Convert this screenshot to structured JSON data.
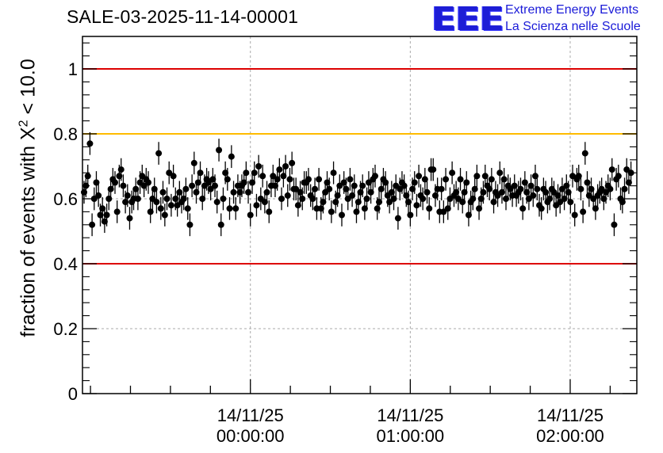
{
  "title": "SALE-03-2025-11-14-00001",
  "logo": {
    "mark": "EEE",
    "line1": "Extreme Energy Events",
    "line2": "La Scienza nelle Scuole"
  },
  "chart_data": {
    "type": "scatter",
    "title": "SALE-03-2025-11-14-00001",
    "ylabel_prefix": "fraction of events with ",
    "ylabel_chi": "X",
    "ylabel_exp": "2",
    "ylabel_suffix": " < 10.0",
    "ylim": [
      0,
      1.1
    ],
    "yticks": [
      {
        "value": 0,
        "label": "0"
      },
      {
        "value": 0.2,
        "label": "0.2"
      },
      {
        "value": 0.4,
        "label": "0.4"
      },
      {
        "value": 0.6,
        "label": "0.6"
      },
      {
        "value": 0.8,
        "label": "0.8"
      },
      {
        "value": 1,
        "label": "1"
      }
    ],
    "xlim_min": [
      -63,
      145
    ],
    "xticks": [
      {
        "value": 0,
        "date": "14/11/25",
        "time": "00:00:00"
      },
      {
        "value": 60,
        "date": "14/11/25",
        "time": "01:00:00"
      },
      {
        "value": 120,
        "date": "14/11/25",
        "time": "02:00:00"
      }
    ],
    "x_minor_step_min": 15,
    "reference_lines": [
      {
        "value": 1.0,
        "color": "#dd0000"
      },
      {
        "value": 0.8,
        "color": "#ffbb00"
      },
      {
        "value": 0.4,
        "color": "#dd0000"
      }
    ],
    "series": [
      {
        "name": "fraction",
        "error": 0.035,
        "points": [
          [
            -62.4,
            0.62
          ],
          [
            -61.7,
            0.64
          ],
          [
            -61.0,
            0.67
          ],
          [
            -60.2,
            0.77
          ],
          [
            -59.4,
            0.52
          ],
          [
            -58.6,
            0.6
          ],
          [
            -57.8,
            0.65
          ],
          [
            -57.0,
            0.61
          ],
          [
            -56.3,
            0.55
          ],
          [
            -55.5,
            0.57
          ],
          [
            -54.7,
            0.53
          ],
          [
            -53.9,
            0.55
          ],
          [
            -53.1,
            0.6
          ],
          [
            -52.4,
            0.63
          ],
          [
            -51.6,
            0.66
          ],
          [
            -50.8,
            0.65
          ],
          [
            -50.0,
            0.56
          ],
          [
            -49.2,
            0.67
          ],
          [
            -48.5,
            0.69
          ],
          [
            -47.7,
            0.64
          ],
          [
            -46.9,
            0.59
          ],
          [
            -46.1,
            0.61
          ],
          [
            -45.3,
            0.54
          ],
          [
            -44.5,
            0.59
          ],
          [
            -43.8,
            0.6
          ],
          [
            -43.0,
            0.63
          ],
          [
            -42.2,
            0.6
          ],
          [
            -41.4,
            0.65
          ],
          [
            -40.6,
            0.67
          ],
          [
            -39.9,
            0.64
          ],
          [
            -39.1,
            0.66
          ],
          [
            -38.3,
            0.65
          ],
          [
            -37.5,
            0.56
          ],
          [
            -36.7,
            0.6
          ],
          [
            -36.0,
            0.63
          ],
          [
            -35.2,
            0.59
          ],
          [
            -34.4,
            0.74
          ],
          [
            -33.6,
            0.57
          ],
          [
            -32.8,
            0.62
          ],
          [
            -32.1,
            0.55
          ],
          [
            -31.3,
            0.6
          ],
          [
            -30.5,
            0.68
          ],
          [
            -29.7,
            0.58
          ],
          [
            -28.9,
            0.67
          ],
          [
            -28.1,
            0.6
          ],
          [
            -27.4,
            0.58
          ],
          [
            -26.6,
            0.62
          ],
          [
            -25.8,
            0.59
          ],
          [
            -25.0,
            0.6
          ],
          [
            -24.2,
            0.63
          ],
          [
            -23.5,
            0.57
          ],
          [
            -22.7,
            0.52
          ],
          [
            -21.9,
            0.64
          ],
          [
            -21.1,
            0.71
          ],
          [
            -20.3,
            0.62
          ],
          [
            -19.6,
            0.65
          ],
          [
            -18.8,
            0.68
          ],
          [
            -18.0,
            0.6
          ],
          [
            -17.2,
            0.64
          ],
          [
            -16.4,
            0.66
          ],
          [
            -15.7,
            0.65
          ],
          [
            -14.9,
            0.63
          ],
          [
            -14.1,
            0.66
          ],
          [
            -13.3,
            0.64
          ],
          [
            -12.5,
            0.59
          ],
          [
            -11.8,
            0.75
          ],
          [
            -11.0,
            0.52
          ],
          [
            -10.2,
            0.6
          ],
          [
            -9.4,
            0.68
          ],
          [
            -8.6,
            0.66
          ],
          [
            -7.8,
            0.57
          ],
          [
            -7.1,
            0.73
          ],
          [
            -6.3,
            0.62
          ],
          [
            -5.5,
            0.57
          ],
          [
            -4.7,
            0.64
          ],
          [
            -3.9,
            0.62
          ],
          [
            -3.2,
            0.64
          ],
          [
            -2.4,
            0.65
          ],
          [
            -1.6,
            0.68
          ],
          [
            -0.8,
            0.62
          ],
          [
            0.0,
            0.55
          ],
          [
            0.7,
            0.65
          ],
          [
            1.5,
            0.68
          ],
          [
            2.3,
            0.58
          ],
          [
            3.1,
            0.7
          ],
          [
            3.9,
            0.6
          ],
          [
            4.6,
            0.67
          ],
          [
            5.4,
            0.59
          ],
          [
            6.2,
            0.62
          ],
          [
            7.0,
            0.56
          ],
          [
            7.8,
            0.64
          ],
          [
            8.5,
            0.67
          ],
          [
            9.3,
            0.64
          ],
          [
            10.1,
            0.66
          ],
          [
            10.9,
            0.69
          ],
          [
            11.7,
            0.6
          ],
          [
            12.4,
            0.67
          ],
          [
            13.2,
            0.7
          ],
          [
            14.0,
            0.61
          ],
          [
            14.8,
            0.66
          ],
          [
            15.6,
            0.71
          ],
          [
            16.3,
            0.63
          ],
          [
            17.1,
            0.63
          ],
          [
            17.9,
            0.58
          ],
          [
            18.7,
            0.62
          ],
          [
            19.5,
            0.6
          ],
          [
            20.2,
            0.65
          ],
          [
            21.0,
            0.65
          ],
          [
            21.8,
            0.66
          ],
          [
            22.6,
            0.61
          ],
          [
            23.4,
            0.6
          ],
          [
            24.2,
            0.63
          ],
          [
            24.9,
            0.57
          ],
          [
            25.7,
            0.66
          ],
          [
            26.5,
            0.57
          ],
          [
            27.3,
            0.59
          ],
          [
            28.1,
            0.62
          ],
          [
            28.8,
            0.65
          ],
          [
            29.6,
            0.63
          ],
          [
            30.4,
            0.56
          ],
          [
            31.2,
            0.68
          ],
          [
            32.0,
            0.59
          ],
          [
            32.7,
            0.61
          ],
          [
            33.5,
            0.64
          ],
          [
            34.3,
            0.55
          ],
          [
            35.1,
            0.65
          ],
          [
            35.9,
            0.63
          ],
          [
            36.6,
            0.6
          ],
          [
            37.4,
            0.66
          ],
          [
            38.2,
            0.61
          ],
          [
            39.0,
            0.64
          ],
          [
            39.8,
            0.56
          ],
          [
            40.5,
            0.59
          ],
          [
            41.3,
            0.62
          ],
          [
            42.1,
            0.64
          ],
          [
            42.9,
            0.57
          ],
          [
            43.7,
            0.6
          ],
          [
            44.4,
            0.65
          ],
          [
            45.2,
            0.62
          ],
          [
            46.0,
            0.66
          ],
          [
            46.8,
            0.67
          ],
          [
            47.6,
            0.57
          ],
          [
            48.3,
            0.59
          ],
          [
            49.1,
            0.63
          ],
          [
            49.9,
            0.66
          ],
          [
            50.7,
            0.65
          ],
          [
            51.5,
            0.61
          ],
          [
            52.2,
            0.59
          ],
          [
            53.0,
            0.62
          ],
          [
            53.8,
            0.6
          ],
          [
            54.6,
            0.64
          ],
          [
            55.4,
            0.54
          ],
          [
            56.1,
            0.63
          ],
          [
            56.9,
            0.65
          ],
          [
            57.7,
            0.64
          ],
          [
            58.5,
            0.61
          ],
          [
            59.3,
            0.59
          ],
          [
            60.0,
            0.55
          ],
          [
            60.8,
            0.63
          ],
          [
            61.6,
            0.65
          ],
          [
            62.4,
            0.58
          ],
          [
            63.2,
            0.67
          ],
          [
            63.9,
            0.61
          ],
          [
            64.7,
            0.6
          ],
          [
            65.5,
            0.66
          ],
          [
            66.3,
            0.62
          ],
          [
            67.1,
            0.57
          ],
          [
            67.8,
            0.69
          ],
          [
            68.6,
            0.69
          ],
          [
            69.4,
            0.61
          ],
          [
            70.2,
            0.63
          ],
          [
            71.0,
            0.56
          ],
          [
            71.7,
            0.63
          ],
          [
            72.5,
            0.56
          ],
          [
            73.3,
            0.66
          ],
          [
            74.1,
            0.57
          ],
          [
            74.9,
            0.6
          ],
          [
            75.7,
            0.68
          ],
          [
            76.4,
            0.61
          ],
          [
            77.2,
            0.62
          ],
          [
            78.0,
            0.6
          ],
          [
            78.8,
            0.66
          ],
          [
            79.6,
            0.59
          ],
          [
            80.3,
            0.62
          ],
          [
            81.1,
            0.65
          ],
          [
            81.9,
            0.55
          ],
          [
            82.7,
            0.59
          ],
          [
            83.5,
            0.6
          ],
          [
            84.2,
            0.63
          ],
          [
            85.0,
            0.67
          ],
          [
            85.8,
            0.57
          ],
          [
            86.6,
            0.6
          ],
          [
            87.4,
            0.62
          ],
          [
            88.1,
            0.67
          ],
          [
            88.9,
            0.64
          ],
          [
            89.7,
            0.63
          ],
          [
            90.5,
            0.66
          ],
          [
            91.3,
            0.59
          ],
          [
            92.0,
            0.62
          ],
          [
            92.8,
            0.61
          ],
          [
            93.6,
            0.68
          ],
          [
            94.4,
            0.62
          ],
          [
            95.2,
            0.66
          ],
          [
            95.9,
            0.6
          ],
          [
            96.7,
            0.64
          ],
          [
            97.5,
            0.63
          ],
          [
            98.3,
            0.61
          ],
          [
            99.1,
            0.64
          ],
          [
            99.8,
            0.61
          ],
          [
            100.6,
            0.62
          ],
          [
            101.4,
            0.63
          ],
          [
            102.2,
            0.57
          ],
          [
            103.0,
            0.65
          ],
          [
            103.7,
            0.62
          ],
          [
            104.5,
            0.6
          ],
          [
            105.3,
            0.64
          ],
          [
            106.1,
            0.61
          ],
          [
            106.9,
            0.67
          ],
          [
            107.6,
            0.63
          ],
          [
            108.4,
            0.58
          ],
          [
            109.2,
            0.57
          ],
          [
            110.0,
            0.63
          ],
          [
            110.8,
            0.62
          ],
          [
            111.5,
            0.59
          ],
          [
            112.3,
            0.6
          ],
          [
            113.1,
            0.63
          ],
          [
            113.9,
            0.62
          ],
          [
            114.7,
            0.58
          ],
          [
            115.4,
            0.61
          ],
          [
            116.2,
            0.59
          ],
          [
            117.0,
            0.63
          ],
          [
            117.8,
            0.6
          ],
          [
            118.6,
            0.64
          ],
          [
            119.3,
            0.62
          ],
          [
            120.1,
            0.59
          ],
          [
            120.9,
            0.67
          ],
          [
            121.7,
            0.55
          ],
          [
            122.5,
            0.66
          ],
          [
            123.2,
            0.67
          ],
          [
            124.0,
            0.63
          ],
          [
            124.8,
            0.56
          ],
          [
            125.6,
            0.74
          ],
          [
            126.4,
            0.65
          ],
          [
            127.1,
            0.61
          ],
          [
            127.9,
            0.63
          ],
          [
            128.7,
            0.6
          ],
          [
            129.5,
            0.57
          ],
          [
            130.3,
            0.61
          ],
          [
            131.1,
            0.62
          ],
          [
            131.8,
            0.63
          ],
          [
            132.6,
            0.6
          ],
          [
            133.4,
            0.62
          ],
          [
            134.2,
            0.64
          ],
          [
            135.0,
            0.63
          ],
          [
            135.7,
            0.69
          ],
          [
            136.5,
            0.52
          ],
          [
            137.3,
            0.66
          ],
          [
            138.1,
            0.67
          ],
          [
            138.9,
            0.6
          ],
          [
            139.6,
            0.59
          ],
          [
            140.4,
            0.63
          ],
          [
            141.2,
            0.69
          ],
          [
            142.0,
            0.65
          ],
          [
            142.8,
            0.68
          ]
        ]
      }
    ]
  },
  "colors": {
    "axis": "#000000",
    "grid": "#aaaaaa",
    "marker": "#000000",
    "logo": "#1a1ad8"
  }
}
